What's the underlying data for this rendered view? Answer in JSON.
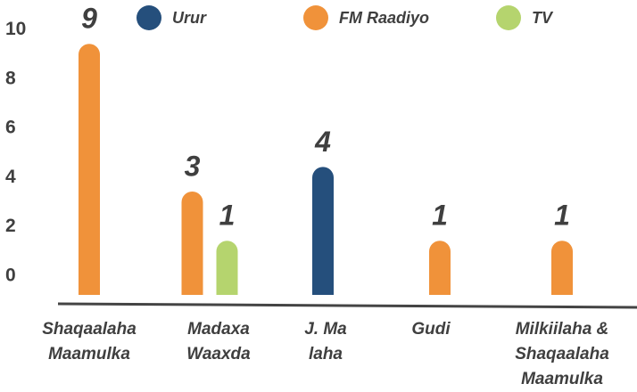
{
  "chart_data": {
    "type": "bar",
    "categories": [
      [
        "Shaqaalaha",
        "Maamulka"
      ],
      [
        "Madaxa",
        "Waaxda"
      ],
      [
        "J. Ma",
        "laha"
      ],
      [
        "Gudi"
      ],
      [
        "Milkiilaha &",
        "Shaqaalaha",
        "Maamulka"
      ]
    ],
    "series": [
      {
        "name": "Urur",
        "color": "#254f7c",
        "values": [
          null,
          null,
          4,
          null,
          null
        ]
      },
      {
        "name": "FM Raadiyo",
        "color": "#f0923a",
        "values": [
          9,
          3,
          null,
          1,
          1
        ]
      },
      {
        "name": "TV",
        "color": "#b5d46e",
        "values": [
          null,
          1,
          null,
          null,
          null
        ]
      }
    ],
    "ylim": [
      -1.2,
      10.6
    ],
    "yticks": [
      0,
      2,
      4,
      6,
      8,
      10
    ],
    "grid": false
  }
}
